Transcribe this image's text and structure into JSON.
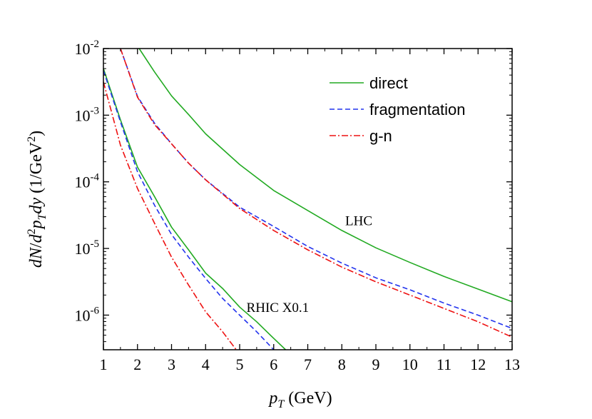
{
  "chart_data": {
    "type": "line",
    "xlabel": "p_T (GeV)",
    "ylabel": "dN/d²p_T dy (1/GeV²)",
    "xlim": [
      1,
      13
    ],
    "ylim_exp": [
      -6.52,
      -2
    ],
    "yscale": "log",
    "x_ticks": [
      1,
      2,
      3,
      4,
      5,
      6,
      7,
      8,
      9,
      10,
      11,
      12,
      13
    ],
    "y_ticks": [
      {
        "base": "10",
        "exp": "-2",
        "value": -2
      },
      {
        "base": "10",
        "exp": "-3",
        "value": -3
      },
      {
        "base": "10",
        "exp": "-4",
        "value": -4
      },
      {
        "base": "10",
        "exp": "-5",
        "value": -5
      },
      {
        "base": "10",
        "exp": "-6",
        "value": -6
      }
    ],
    "legend": [
      {
        "label": "direct",
        "color": "#22aa22",
        "dash": "solid"
      },
      {
        "label": "fragmentation",
        "color": "#2233ee",
        "dash": "dashed"
      },
      {
        "label": "g-n",
        "color": "#ee1111",
        "dash": "dashdot"
      }
    ],
    "annotations": [
      {
        "text": "LHC",
        "x": 8.1,
        "y_exp": -4.65
      },
      {
        "text": "RHIC X0.1",
        "x": 5.2,
        "y_exp": -5.95
      }
    ],
    "series": [
      {
        "name": "LHC direct",
        "color": "#22aa22",
        "dash": "solid",
        "x": [
          2.05,
          2.5,
          3,
          3.5,
          4,
          5,
          6,
          7,
          8,
          9,
          10,
          11,
          12,
          13
        ],
        "y_exp": [
          -2.0,
          -2.35,
          -2.71,
          -2.99,
          -3.28,
          -3.74,
          -4.13,
          -4.43,
          -4.73,
          -4.99,
          -5.21,
          -5.42,
          -5.61,
          -5.8
        ]
      },
      {
        "name": "LHC fragmentation",
        "color": "#2233ee",
        "dash": "dashed",
        "x": [
          1.5,
          2,
          2.5,
          3,
          3.5,
          4,
          5,
          6,
          7,
          8,
          9,
          10,
          11,
          12,
          13
        ],
        "y_exp": [
          -2.0,
          -2.72,
          -3.12,
          -3.43,
          -3.72,
          -3.97,
          -4.38,
          -4.67,
          -4.97,
          -5.22,
          -5.44,
          -5.62,
          -5.82,
          -6.0,
          -6.2
        ]
      },
      {
        "name": "LHC g-n",
        "color": "#ee1111",
        "dash": "dashdot",
        "x": [
          1.5,
          2,
          2.5,
          3,
          3.5,
          4,
          5,
          6,
          7,
          8,
          9,
          10,
          11,
          12,
          13
        ],
        "y_exp": [
          -2.0,
          -2.73,
          -3.14,
          -3.43,
          -3.72,
          -3.97,
          -4.4,
          -4.73,
          -5.02,
          -5.28,
          -5.5,
          -5.7,
          -5.9,
          -6.1,
          -6.33
        ]
      },
      {
        "name": "RHIC direct",
        "color": "#22aa22",
        "dash": "solid",
        "x": [
          1,
          1.5,
          2,
          2.5,
          3,
          3.5,
          4,
          4.5,
          5,
          5.5,
          6,
          6.35
        ],
        "y_exp": [
          -2.3,
          -3.07,
          -3.78,
          -4.22,
          -4.68,
          -5.02,
          -5.37,
          -5.6,
          -5.88,
          -6.1,
          -6.35,
          -6.52
        ]
      },
      {
        "name": "RHIC fragmentation",
        "color": "#2233ee",
        "dash": "dashed",
        "x": [
          1,
          1.5,
          2,
          2.5,
          3,
          3.5,
          4,
          4.5,
          5,
          5.5,
          6.0
        ],
        "y_exp": [
          -2.33,
          -3.1,
          -3.85,
          -4.35,
          -4.79,
          -5.13,
          -5.45,
          -5.75,
          -6.0,
          -6.25,
          -6.52
        ]
      },
      {
        "name": "RHIC g-n",
        "color": "#ee1111",
        "dash": "dashdot",
        "x": [
          1,
          1.5,
          2,
          2.5,
          3,
          3.5,
          4,
          4.5,
          4.9
        ],
        "y_exp": [
          -2.5,
          -3.45,
          -4.1,
          -4.62,
          -5.13,
          -5.55,
          -5.95,
          -6.25,
          -6.52
        ]
      }
    ]
  }
}
